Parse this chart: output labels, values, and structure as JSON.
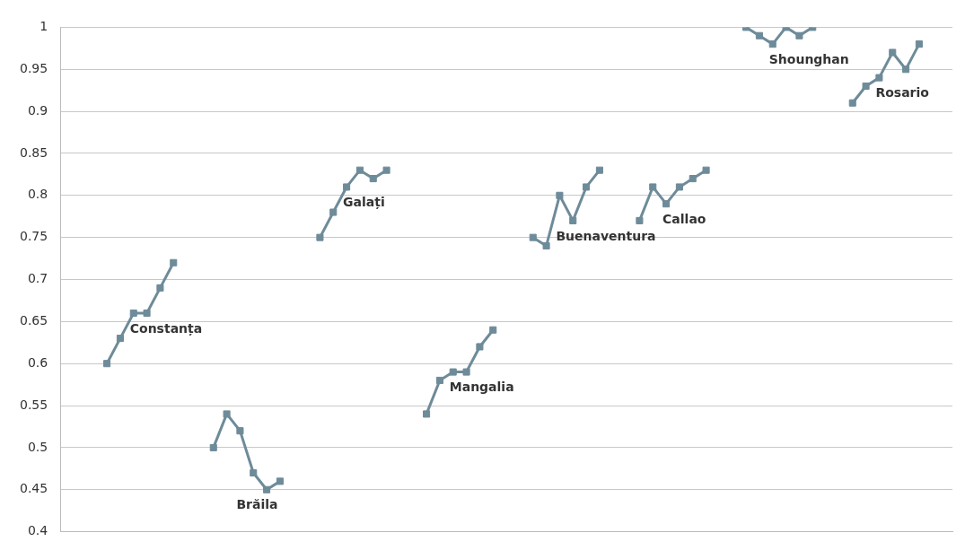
{
  "chart_data": {
    "type": "line",
    "categories": [
      null,
      null,
      null,
      null,
      null,
      null,
      null,
      null,
      null,
      null,
      null,
      null,
      null,
      null,
      null,
      null,
      null,
      null,
      null,
      null,
      null,
      null,
      null,
      null,
      null,
      null,
      null,
      null,
      null,
      null,
      null,
      null,
      null,
      null,
      null,
      null,
      null,
      null,
      null,
      null,
      null,
      null,
      null,
      null,
      null,
      null,
      null,
      null,
      null,
      null,
      null,
      null,
      null,
      null,
      null,
      null,
      null,
      null,
      null,
      null,
      null,
      null,
      null,
      null,
      null,
      null,
      null
    ],
    "series": [
      {
        "name": "Constanța",
        "color": "#6e8b99",
        "values": [
          null,
          null,
          null,
          0.6,
          0.63,
          0.66,
          0.66,
          0.69,
          0.72,
          null,
          null,
          null,
          null,
          null,
          null,
          null,
          null,
          null,
          null,
          null,
          null,
          null,
          null,
          null,
          null,
          null,
          null,
          null,
          null,
          null,
          null,
          null,
          null,
          null,
          null,
          null,
          null,
          null,
          null,
          null,
          null,
          null,
          null,
          null,
          null,
          null,
          null,
          null,
          null,
          null,
          null,
          null,
          null,
          null,
          null,
          null,
          null,
          null,
          null,
          null,
          null,
          null,
          null,
          null,
          null,
          null,
          null
        ]
      },
      {
        "name": "Brăila",
        "color": "#6e8b99",
        "values": [
          null,
          null,
          null,
          null,
          null,
          null,
          null,
          null,
          null,
          null,
          null,
          0.5,
          0.54,
          0.52,
          0.47,
          0.45,
          0.46,
          null,
          null,
          null,
          null,
          null,
          null,
          null,
          null,
          null,
          null,
          null,
          null,
          null,
          null,
          null,
          null,
          null,
          null,
          null,
          null,
          null,
          null,
          null,
          null,
          null,
          null,
          null,
          null,
          null,
          null,
          null,
          null,
          null,
          null,
          null,
          null,
          null,
          null,
          null,
          null,
          null,
          null,
          null,
          null,
          null,
          null,
          null,
          null,
          null,
          null
        ]
      },
      {
        "name": "Galați",
        "color": "#6e8b99",
        "values": [
          null,
          null,
          null,
          null,
          null,
          null,
          null,
          null,
          null,
          null,
          null,
          null,
          null,
          null,
          null,
          null,
          null,
          null,
          null,
          0.75,
          0.78,
          0.81,
          0.83,
          0.82,
          0.83,
          null,
          null,
          null,
          null,
          null,
          null,
          null,
          null,
          null,
          null,
          null,
          null,
          null,
          null,
          null,
          null,
          null,
          null,
          null,
          null,
          null,
          null,
          null,
          null,
          null,
          null,
          null,
          null,
          null,
          null,
          null,
          null,
          null,
          null,
          null,
          null,
          null,
          null,
          null,
          null,
          null,
          null
        ]
      },
      {
        "name": "Mangalia",
        "color": "#6e8b99",
        "values": [
          null,
          null,
          null,
          null,
          null,
          null,
          null,
          null,
          null,
          null,
          null,
          null,
          null,
          null,
          null,
          null,
          null,
          null,
          null,
          null,
          null,
          null,
          null,
          null,
          null,
          null,
          null,
          0.54,
          0.58,
          0.59,
          0.59,
          0.62,
          0.64,
          null,
          null,
          null,
          null,
          null,
          null,
          null,
          null,
          null,
          null,
          null,
          null,
          null,
          null,
          null,
          null,
          null,
          null,
          null,
          null,
          null,
          null,
          null,
          null,
          null,
          null,
          null,
          null,
          null,
          null,
          null,
          null,
          null,
          null
        ]
      },
      {
        "name": "Buenaventura",
        "color": "#6e8b99",
        "values": [
          null,
          null,
          null,
          null,
          null,
          null,
          null,
          null,
          null,
          null,
          null,
          null,
          null,
          null,
          null,
          null,
          null,
          null,
          null,
          null,
          null,
          null,
          null,
          null,
          null,
          null,
          null,
          null,
          null,
          null,
          null,
          null,
          null,
          null,
          null,
          0.75,
          0.74,
          0.8,
          0.77,
          0.81,
          0.83,
          null,
          null,
          null,
          null,
          null,
          null,
          null,
          null,
          null,
          null,
          null,
          null,
          null,
          null,
          null,
          null,
          null,
          null,
          null,
          null,
          null,
          null,
          null,
          null,
          null,
          null
        ]
      },
      {
        "name": "Callao",
        "color": "#6e8b99",
        "values": [
          null,
          null,
          null,
          null,
          null,
          null,
          null,
          null,
          null,
          null,
          null,
          null,
          null,
          null,
          null,
          null,
          null,
          null,
          null,
          null,
          null,
          null,
          null,
          null,
          null,
          null,
          null,
          null,
          null,
          null,
          null,
          null,
          null,
          null,
          null,
          null,
          null,
          null,
          null,
          null,
          null,
          null,
          null,
          0.77,
          0.81,
          0.79,
          0.81,
          0.82,
          0.83,
          null,
          null,
          null,
          null,
          null,
          null,
          null,
          null,
          null,
          null,
          null,
          null,
          null,
          null,
          null,
          null,
          null,
          null
        ]
      },
      {
        "name": "Shounghan",
        "color": "#6e8b99",
        "values": [
          null,
          null,
          null,
          null,
          null,
          null,
          null,
          null,
          null,
          null,
          null,
          null,
          null,
          null,
          null,
          null,
          null,
          null,
          null,
          null,
          null,
          null,
          null,
          null,
          null,
          null,
          null,
          null,
          null,
          null,
          null,
          null,
          null,
          null,
          null,
          null,
          null,
          null,
          null,
          null,
          null,
          null,
          null,
          null,
          null,
          null,
          null,
          null,
          null,
          null,
          null,
          1,
          0.99,
          0.98,
          1,
          0.99,
          1,
          null,
          null,
          null,
          null,
          null,
          null,
          null,
          null,
          null,
          null
        ]
      },
      {
        "name": "Rosario",
        "color": "#6e8b99",
        "values": [
          null,
          null,
          null,
          null,
          null,
          null,
          null,
          null,
          null,
          null,
          null,
          null,
          null,
          null,
          null,
          null,
          null,
          null,
          null,
          null,
          null,
          null,
          null,
          null,
          null,
          null,
          null,
          null,
          null,
          null,
          null,
          null,
          null,
          null,
          null,
          null,
          null,
          null,
          null,
          null,
          null,
          null,
          null,
          null,
          null,
          null,
          null,
          null,
          null,
          null,
          null,
          null,
          null,
          null,
          null,
          null,
          null,
          null,
          null,
          0.91,
          0.93,
          0.94,
          0.97,
          0.95,
          0.98,
          null,
          null
        ]
      }
    ],
    "ylim": [
      0.4,
      1
    ],
    "yticks": [
      0.4,
      0.45,
      0.5,
      0.55,
      0.6,
      0.65,
      0.7,
      0.75,
      0.8,
      0.85,
      0.9,
      0.95,
      1
    ],
    "grid": "y",
    "legend": false,
    "tick_labels": "y",
    "marker": "square",
    "line_style": "solid"
  }
}
